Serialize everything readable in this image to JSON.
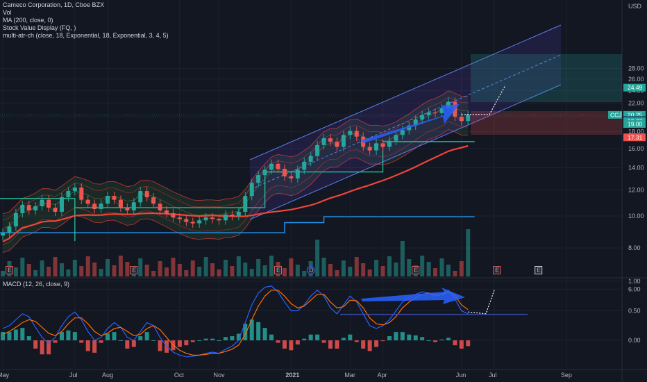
{
  "legend": {
    "title": "Cameco Corporation, 1D, Cboe BZX",
    "line2": "Vol",
    "line3": "MA (200, close, 0)",
    "line4": "Stock Value Display (FQ, )",
    "line5": "multi-atr-ch (close, 18, Exponential, 18, Exponential, 3, 4, 5)",
    "macd": "MACD (12, 26, close, 9)"
  },
  "currency": "USD",
  "colors": {
    "background": "#131722",
    "up": "#26a69a",
    "down": "#ef5350",
    "ma200": "#f0443a",
    "macd_line": "#2962ff",
    "signal_line": "#ff6d00",
    "channel": "#2962ff",
    "envelope": "#e53935",
    "blue_level": "#2196f3",
    "green_step": "#26c6a0"
  },
  "chart_data": [
    {
      "type": "line",
      "name": "price",
      "x_ticks": [
        "May",
        "Jul",
        "Aug",
        "Oct",
        "Nov",
        "2021",
        "Mar",
        "Apr",
        "Jun",
        "Jul",
        "Sep"
      ],
      "y_ticks": [
        6.0,
        8.0,
        10.0,
        12.0,
        14.0,
        16.0,
        18.0,
        20.0,
        22.0,
        24.0,
        26.0,
        28.0
      ],
      "ylim": [
        5.0,
        29.0
      ],
      "axis_scale": "log",
      "series": [
        {
          "name": "",
          "role": "close",
          "values": [
            8.9,
            9.3,
            10.2,
            10.8,
            10.4,
            10.7,
            11.2,
            10.6,
            10.3,
            11.4,
            11.9,
            12.2,
            11.2,
            10.9,
            10.5,
            10.9,
            11.5,
            11.2,
            10.6,
            10.4,
            11.0,
            11.9,
            11.4,
            10.9,
            10.4,
            10.2,
            9.9,
            9.8,
            9.6,
            9.5,
            9.7,
            9.9,
            9.8,
            9.7,
            10.1,
            10.0,
            10.3,
            11.5,
            12.6,
            13.3,
            13.8,
            14.4,
            13.9,
            13.2,
            13.0,
            13.8,
            14.6,
            15.2,
            16.4,
            17.2,
            16.8,
            16.2,
            17.6,
            18.1,
            17.4,
            16.2,
            15.8,
            16.6,
            16.2,
            16.9,
            17.6,
            18.2,
            18.8,
            19.6,
            20.2,
            20.6,
            20.5,
            21.2,
            22.2,
            20.0,
            19.4,
            20.25
          ]
        }
      ]
    },
    {
      "type": "line",
      "name": "macd",
      "y_ticks": [
        0.0,
        0.5,
        1.0
      ],
      "ylim": [
        -0.38,
        1.08
      ],
      "series": [
        {
          "name": "",
          "role": "macd",
          "values": [
            0.2,
            0.25,
            0.35,
            0.45,
            0.4,
            0.22,
            0.05,
            -0.05,
            0.05,
            0.25,
            0.4,
            0.48,
            0.35,
            0.15,
            0.0,
            0.05,
            0.2,
            0.3,
            0.22,
            0.05,
            0.0,
            0.15,
            0.3,
            0.25,
            0.05,
            -0.1,
            -0.2,
            -0.25,
            -0.28,
            -0.27,
            -0.25,
            -0.22,
            -0.2,
            -0.22,
            -0.15,
            -0.1,
            0.0,
            0.3,
            0.6,
            0.8,
            0.9,
            0.92,
            0.82,
            0.65,
            0.5,
            0.5,
            0.6,
            0.75,
            0.85,
            0.75,
            0.55,
            0.45,
            0.6,
            0.75,
            0.65,
            0.45,
            0.25,
            0.2,
            0.25,
            0.35,
            0.5,
            0.65,
            0.72,
            0.78,
            0.82,
            0.8,
            0.75,
            0.78,
            0.85,
            0.7,
            0.5,
            0.45
          ]
        },
        {
          "name": "",
          "role": "signal",
          "values": [
            0.1,
            0.15,
            0.22,
            0.3,
            0.35,
            0.32,
            0.22,
            0.12,
            0.08,
            0.15,
            0.28,
            0.38,
            0.38,
            0.28,
            0.15,
            0.08,
            0.12,
            0.2,
            0.22,
            0.15,
            0.08,
            0.1,
            0.2,
            0.25,
            0.18,
            0.05,
            -0.08,
            -0.17,
            -0.22,
            -0.25,
            -0.25,
            -0.24,
            -0.22,
            -0.22,
            -0.19,
            -0.15,
            -0.08,
            0.1,
            0.35,
            0.58,
            0.75,
            0.85,
            0.85,
            0.75,
            0.62,
            0.55,
            0.58,
            0.68,
            0.78,
            0.78,
            0.65,
            0.55,
            0.57,
            0.68,
            0.67,
            0.55,
            0.38,
            0.28,
            0.26,
            0.3,
            0.4,
            0.55,
            0.65,
            0.72,
            0.78,
            0.8,
            0.77,
            0.77,
            0.82,
            0.76,
            0.6,
            0.52
          ]
        }
      ]
    }
  ],
  "price_tags": [
    {
      "text": "24.49",
      "value": 24.49,
      "color": "#26a69a"
    },
    {
      "text": "20.25",
      "value": 20.25,
      "color": "#26a69a",
      "label": "CCJ"
    },
    {
      "text": "19.53",
      "value": 19.53,
      "color": "#1e3a6e"
    },
    {
      "text": "19.37",
      "value": 19.37,
      "color": "#26a69a"
    },
    {
      "text": "19.00",
      "value": 19.0,
      "color": "#26a69a"
    },
    {
      "text": "17.31",
      "value": 17.31,
      "color": "#ef5350"
    }
  ],
  "event_markers": [
    {
      "text": "E",
      "index": 1,
      "kind": "earnings"
    },
    {
      "text": "E",
      "index": 20,
      "kind": "earnings"
    },
    {
      "text": "E",
      "index": 42,
      "kind": "earnings"
    },
    {
      "text": "D",
      "index": 47,
      "kind": "dividend"
    },
    {
      "text": "E",
      "index": 63,
      "kind": "earnings"
    },
    {
      "text": "E",
      "index": 80,
      "kind": "earnings"
    },
    {
      "text": "E",
      "index": 95,
      "kind": "earnings-upcoming"
    }
  ]
}
